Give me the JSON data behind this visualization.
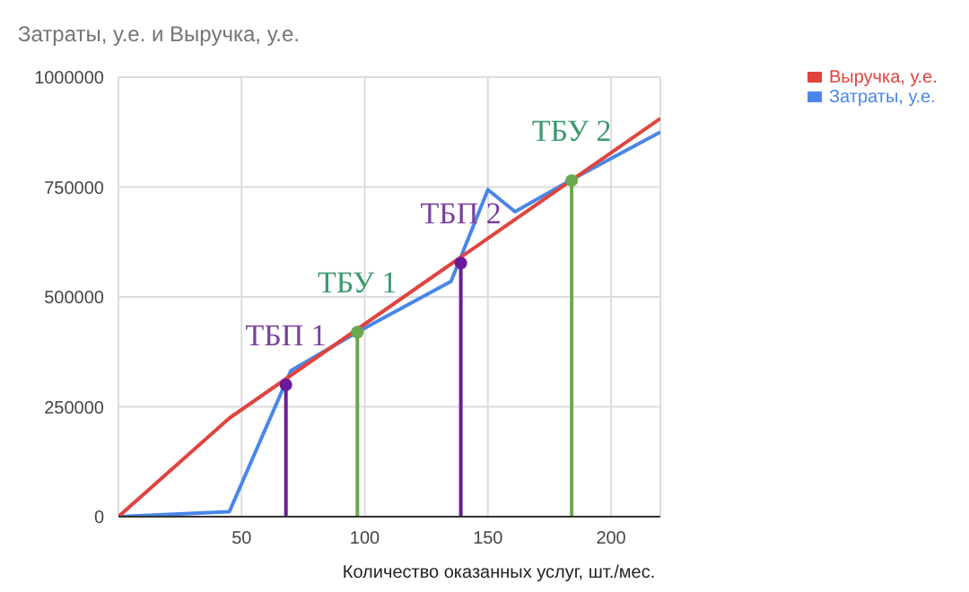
{
  "chart_data": {
    "type": "line",
    "title": "Затраты, у.е. и Выручка, у.е.",
    "xlabel": "Количество оказанных услуг, шт./мес.",
    "series": [
      {
        "name": "Затраты, у.е.",
        "color": "#4a86e8",
        "x": [
          0,
          45,
          70,
          97,
          135,
          150,
          161,
          185,
          220
        ],
        "values": [
          0,
          11000,
          332000,
          420000,
          535000,
          744000,
          694000,
          770000,
          875000
        ]
      },
      {
        "name": "Выручка, у.е.",
        "color": "#e0443e",
        "x": [
          0,
          45,
          220
        ],
        "values": [
          0,
          224000,
          906000
        ]
      },
      {
        "color": "#6a1b9a",
        "x": [
          68,
          68
        ],
        "values": [
          0,
          300000
        ],
        "marker": "circle"
      },
      {
        "color": "#6aa84f",
        "x": [
          97,
          97
        ],
        "values": [
          0,
          420000
        ],
        "marker": "circle"
      },
      {
        "color": "#6a1b9a",
        "x": [
          139,
          139
        ],
        "values": [
          0,
          577000
        ],
        "marker": "circle"
      },
      {
        "color": "#6aa84f",
        "x": [
          184,
          184
        ],
        "values": [
          0,
          765000
        ],
        "marker": "circle"
      }
    ],
    "annotations": [
      {
        "text": "ТБП 1",
        "x": 68,
        "y": 300000
      },
      {
        "text": "ТБУ 1",
        "x": 97,
        "y": 420000
      },
      {
        "text": "ТБП 2",
        "x": 139,
        "y": 577000
      },
      {
        "text": "ТБУ 2",
        "x": 184,
        "y": 765000
      }
    ],
    "xlim": [
      0,
      220
    ],
    "xticks": [
      50,
      100,
      150,
      200
    ],
    "ylim": [
      0,
      1000000
    ],
    "yticks": [
      0,
      250000,
      500000,
      750000,
      1000000
    ],
    "grid": true,
    "legend": "top right",
    "marker": "none",
    "line_style": "solid"
  }
}
